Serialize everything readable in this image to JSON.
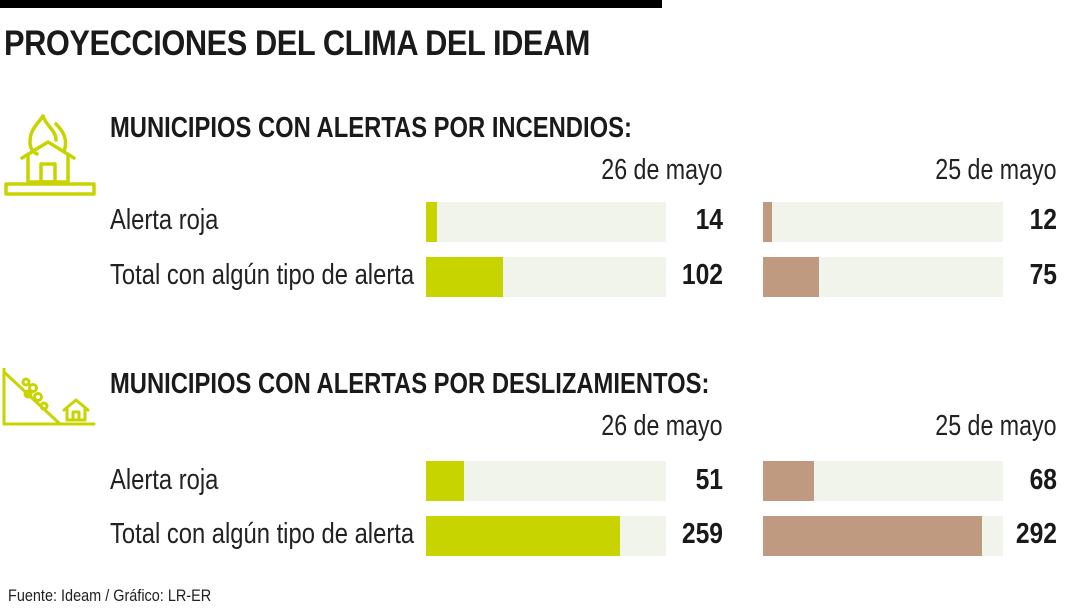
{
  "title": "PROYECCIONES DEL CLIMA DEL IDEAM",
  "source": "Fuente: Ideam / Gráfico: LR-ER",
  "colors": {
    "date1": "#c8d400",
    "date2": "#bf9a80",
    "track": "#f0f4ea",
    "icon": "#c8d400"
  },
  "chart_data": [
    {
      "type": "bar",
      "title": "MUNICIPIOS CON ALERTAS POR INCENDIOS:",
      "icon": "house-fire-icon",
      "categories": [
        "Alerta roja",
        "Total con algún tipo de alerta"
      ],
      "series": [
        {
          "name": "26 de mayo",
          "values": [
            14,
            102
          ]
        },
        {
          "name": "25 de mayo",
          "values": [
            12,
            75
          ]
        }
      ],
      "xlim": [
        0,
        320
      ]
    },
    {
      "type": "bar",
      "title": "MUNICIPIOS CON ALERTAS POR DESLIZAMIENTOS:",
      "icon": "landslide-icon",
      "categories": [
        "Alerta roja",
        "Total con algún tipo de alerta"
      ],
      "series": [
        {
          "name": "26 de mayo",
          "values": [
            51,
            259
          ]
        },
        {
          "name": "25 de mayo",
          "values": [
            68,
            292
          ]
        }
      ],
      "xlim": [
        0,
        320
      ]
    }
  ]
}
